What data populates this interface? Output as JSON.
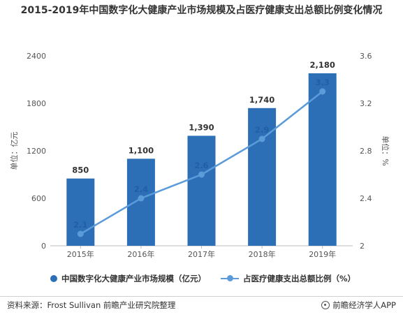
{
  "title": "2015-2019年中国数字化大健康产业市场规模及占医疗健康支出总额比例变化情况",
  "source": "资料来源：Frost Sullivan 前瞻产业研究院整理",
  "brand": "前瞻经济学人APP",
  "colors": {
    "bar": "#2c6fb7",
    "line": "#5b9bd9",
    "label": "#1f5fa8"
  },
  "chart_data": {
    "type": "bar",
    "categories": [
      "2015年",
      "2016年",
      "2017年",
      "2018年",
      "2019年"
    ],
    "series": [
      {
        "name": "中国数字化大健康产业市场规模（亿元）",
        "type": "bar",
        "axis": "left",
        "values": [
          850,
          1100,
          1390,
          1740,
          2180
        ],
        "labels": [
          "850",
          "1,100",
          "1,390",
          "1,740",
          "2,180"
        ]
      },
      {
        "name": "占医疗健康支出总额比例（%）",
        "type": "line",
        "axis": "right",
        "values": [
          2.1,
          2.4,
          2.6,
          2.9,
          3.3
        ],
        "labels": [
          "2.1",
          "2.4",
          "2.6",
          "2.9",
          "3.3"
        ]
      }
    ],
    "ylabel": "单位：亿元",
    "y2label": "单位：%",
    "ylim": [
      0,
      2400
    ],
    "y2lim": [
      2,
      3.6
    ],
    "yticks": [
      0,
      600,
      1200,
      1800,
      2400
    ],
    "y2ticks": [
      "2",
      "2.4",
      "2.8",
      "3.2",
      "3.6"
    ],
    "legend": "bottom",
    "grid": false
  }
}
